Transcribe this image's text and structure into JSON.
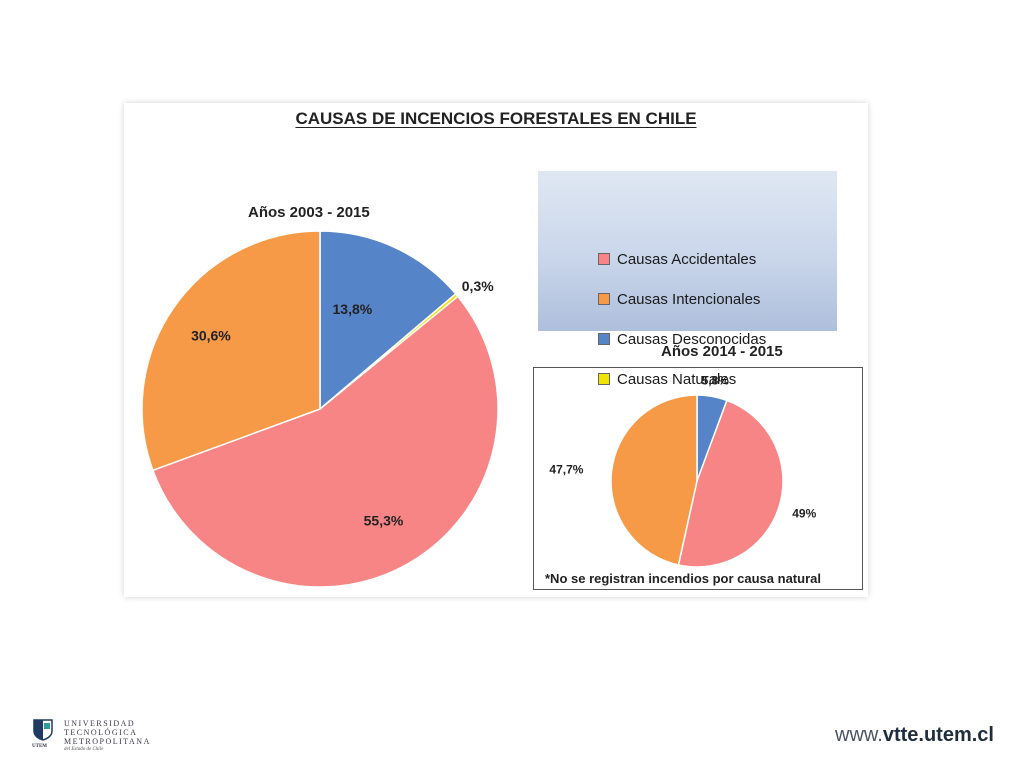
{
  "chart_title": "CAUSAS DE INCENCIOS FORESTALES EN CHILE",
  "legend": [
    {
      "label": "Causas Accidentales",
      "color": "#f78585"
    },
    {
      "label": "Causas Intencionales",
      "color": "#f79a47"
    },
    {
      "label": "Causas Desconocidas",
      "color": "#5584c8"
    },
    {
      "label": "Causas Naturales",
      "color": "#f0e400"
    }
  ],
  "chart_data": [
    {
      "type": "pie",
      "title": "Años 2003 - 2015",
      "categories": [
        "Causas Desconocidas",
        "Causas Naturales",
        "Causas Accidentales",
        "Causas Intencionales"
      ],
      "values": [
        13.8,
        0.3,
        55.3,
        30.6
      ],
      "labels": [
        "13,8%",
        "0,3%",
        "55,3%",
        "30,6%"
      ],
      "colors": [
        "#5584c8",
        "#f0e400",
        "#f78585",
        "#f79a47"
      ]
    },
    {
      "type": "pie",
      "title": "Años 2014 - 2015",
      "categories": [
        "Causas Desconocidas",
        "Causas Accidentales",
        "Causas Intencionales"
      ],
      "values": [
        5.8,
        49,
        47.7
      ],
      "labels": [
        "5,8%",
        "49%",
        "47,7%"
      ],
      "colors": [
        "#5584c8",
        "#f78585",
        "#f79a47"
      ],
      "note": "*No se registran incendios por causa natural"
    }
  ],
  "footer": {
    "logo_lines": [
      "UNIVERSIDAD",
      "TECNOLÓGICA",
      "METROPOLITANA"
    ],
    "logo_sub": "del Estado de Chile",
    "logo_abbr": "UTEM",
    "url_prefix": "www.",
    "url_domain": "vtte.utem.cl"
  }
}
